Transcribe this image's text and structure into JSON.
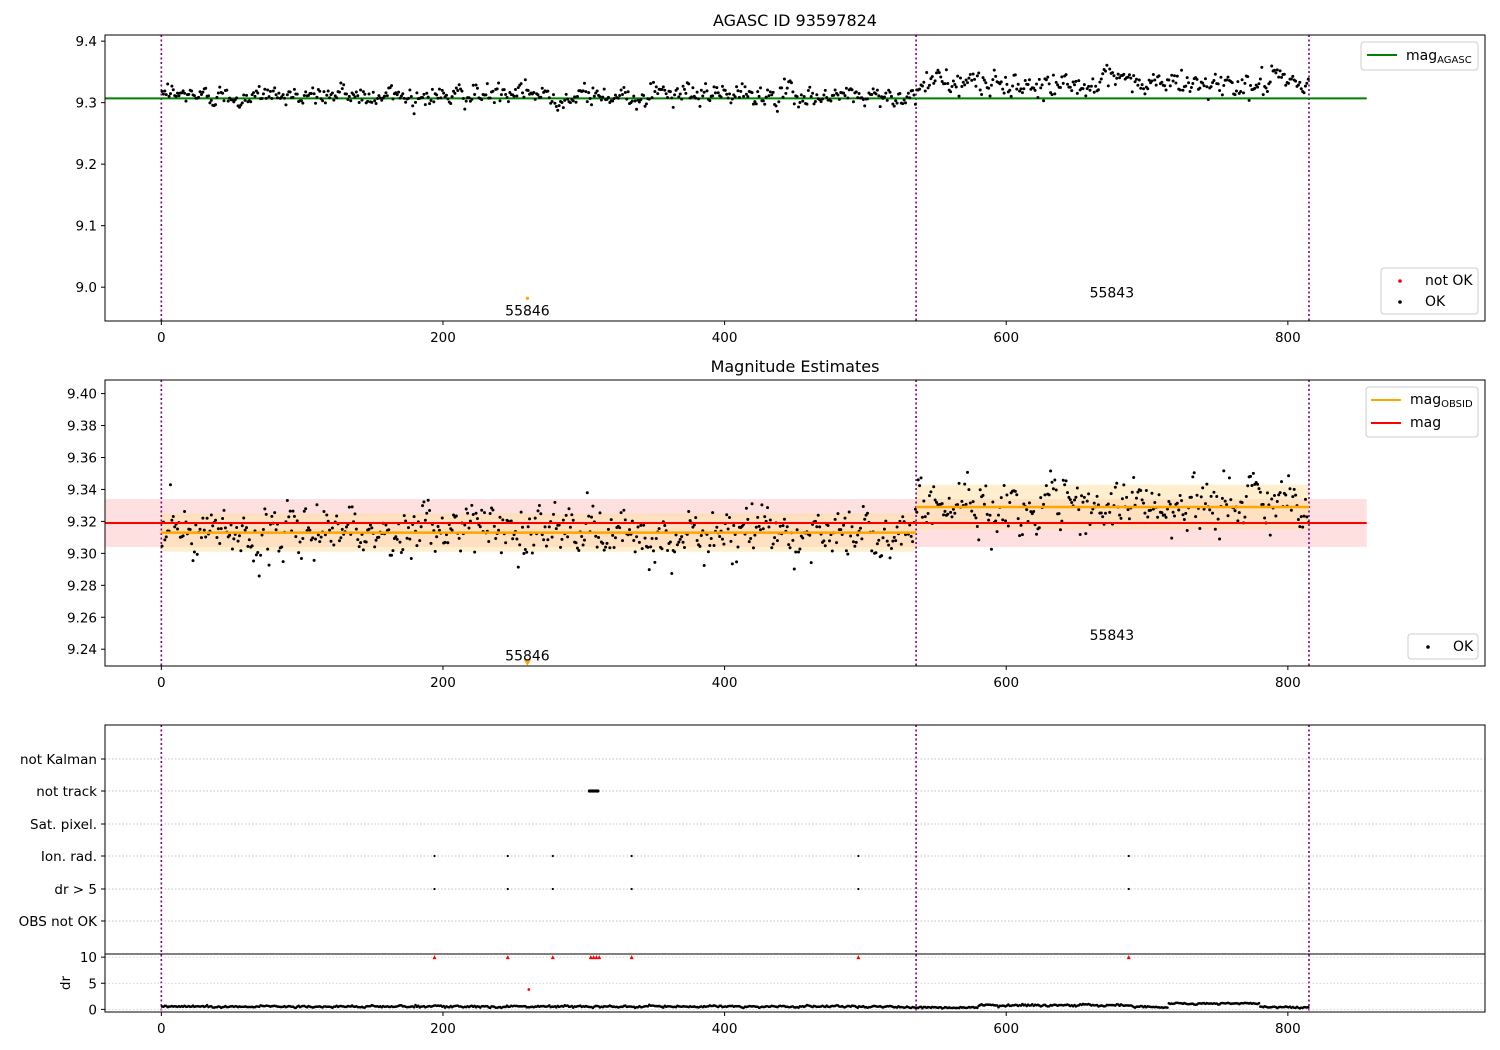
{
  "figure": {
    "background": "#ffffff",
    "colors": {
      "ok": "#000000",
      "not_ok": "#ff0000",
      "mag_agasc": "#008000",
      "mag_obsid": "#ffa500",
      "mag": "#ff0000",
      "obsid_boundary": "#800080",
      "band_mag": "#ffcccc",
      "band_obsid": "#ffe0a0"
    }
  },
  "chart_data": [
    {
      "type": "scatter",
      "title": "AGASC ID 93597824",
      "xlim": [
        -40,
        940
      ],
      "ylim": [
        8.945,
        9.41
      ],
      "xticks": [
        0,
        200,
        400,
        600,
        800
      ],
      "yticks": [
        9.0,
        9.1,
        9.2,
        9.3,
        9.4
      ],
      "ytick_labels": [
        "9.0",
        "9.1",
        "9.2",
        "9.3",
        "9.4"
      ],
      "obsid_boundaries": [
        0,
        536,
        815
      ],
      "mag_agasc": 9.307,
      "mag_agasc_x_range": [
        -40,
        856
      ],
      "segments": [
        {
          "x0": 0,
          "x1": 536,
          "mean": 9.312,
          "spread": 0.012
        },
        {
          "x0": 536,
          "x1": 815,
          "mean": 9.331,
          "spread": 0.014
        }
      ],
      "not_ok_points": [
        {
          "x": 260,
          "y": 8.982
        }
      ],
      "obsid_labels": [
        {
          "text": "55846",
          "x": 260,
          "y": 8.962
        },
        {
          "text": "55843",
          "x": 675,
          "y": 8.991
        }
      ],
      "legends": [
        {
          "position": "upper-right",
          "entries": [
            {
              "label": "mag",
              "sub": "AGASC",
              "marker": "line",
              "color": "#008000"
            }
          ]
        },
        {
          "position": "lower-right",
          "entries": [
            {
              "label": "not OK",
              "marker": "dot",
              "color": "#ff0000"
            },
            {
              "label": "OK",
              "marker": "dot",
              "color": "#000000"
            }
          ]
        }
      ]
    },
    {
      "type": "scatter",
      "title": "Magnitude Estimates",
      "xlim": [
        -40,
        940
      ],
      "ylim": [
        9.2295,
        9.4085
      ],
      "xticks": [
        0,
        200,
        400,
        600,
        800
      ],
      "yticks": [
        9.24,
        9.26,
        9.28,
        9.3,
        9.32,
        9.34,
        9.36,
        9.38,
        9.4
      ],
      "ytick_labels": [
        "9.24",
        "9.26",
        "9.28",
        "9.30",
        "9.32",
        "9.34",
        "9.36",
        "9.38",
        "9.40"
      ],
      "obsid_boundaries": [
        0,
        536,
        815
      ],
      "mag": 9.319,
      "mag_band": [
        9.304,
        9.334
      ],
      "mag_x_range": [
        -40,
        856
      ],
      "mag_obsid": [
        {
          "x0": 0,
          "x1": 536,
          "value": 9.313,
          "band": [
            9.301,
            9.325
          ]
        },
        {
          "x0": 536,
          "x1": 815,
          "value": 9.329,
          "band": [
            9.315,
            9.343
          ]
        }
      ],
      "segments": [
        {
          "x0": 0,
          "x1": 536,
          "mean": 9.313,
          "spread": 0.012
        },
        {
          "x0": 536,
          "x1": 815,
          "mean": 9.33,
          "spread": 0.013
        }
      ],
      "marker": {
        "x": 260,
        "y": 9.2315
      },
      "obsid_labels": [
        {
          "text": "55846",
          "x": 260,
          "y": 9.236
        },
        {
          "text": "55843",
          "x": 675,
          "y": 9.249
        }
      ],
      "legends": [
        {
          "position": "upper-right",
          "entries": [
            {
              "label": "mag",
              "sub": "OBSID",
              "marker": "line",
              "color": "#ffa500"
            },
            {
              "label": "mag",
              "marker": "line",
              "color": "#ff0000"
            }
          ]
        },
        {
          "position": "lower-right",
          "entries": [
            {
              "label": "OK",
              "marker": "dot",
              "color": "#000000"
            }
          ]
        }
      ]
    },
    {
      "type": "scatter",
      "title": "",
      "xlim": [
        -40,
        940
      ],
      "xticks": [
        0,
        200,
        400,
        600,
        800
      ],
      "obsid_boundaries": [
        0,
        536,
        815
      ],
      "flag_categories": [
        "not Kalman",
        "not track",
        "Sat. pixel.",
        "Ion. rad.",
        "dr > 5",
        "OBS not OK"
      ],
      "flag_points": {
        "not track": [
          304,
          305,
          306,
          307,
          308,
          309,
          310
        ],
        "Ion. rad.": [
          194,
          246,
          278,
          334,
          495,
          687
        ],
        "dr > 5": [
          194,
          246,
          278,
          334,
          495,
          687
        ]
      },
      "dr_axis": {
        "ylabel": "dr",
        "ylim": [
          -0.5,
          10.6
        ],
        "yticks": [
          0,
          5,
          10
        ],
        "ytick_labels": [
          "0",
          "5",
          "10"
        ],
        "flagged_x": [
          194,
          246,
          278,
          305,
          307,
          309,
          311,
          334,
          495,
          687
        ],
        "flagged_value": 10,
        "outliers": [
          {
            "x": 261,
            "y": 3.8
          }
        ],
        "segments": [
          {
            "x0": 0,
            "x1": 536,
            "mean": 0.55,
            "spread": 0.15
          },
          {
            "x0": 536,
            "x1": 580,
            "mean": 0.35,
            "spread": 0.1
          },
          {
            "x0": 580,
            "x1": 690,
            "mean": 0.8,
            "spread": 0.15
          },
          {
            "x0": 690,
            "x1": 715,
            "mean": 0.45,
            "spread": 0.1
          },
          {
            "x0": 715,
            "x1": 780,
            "mean": 1.1,
            "spread": 0.12
          },
          {
            "x0": 780,
            "x1": 815,
            "mean": 0.45,
            "spread": 0.12
          }
        ]
      }
    }
  ]
}
